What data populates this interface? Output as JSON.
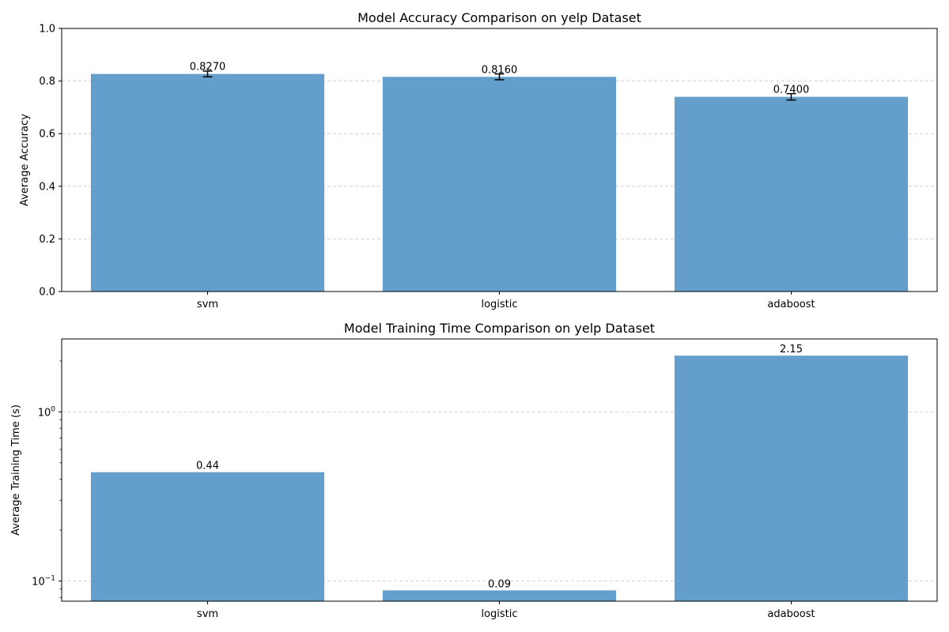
{
  "chart_data": [
    {
      "type": "bar",
      "title": "Model Accuracy Comparison on yelp Dataset",
      "xlabel": "",
      "ylabel": "Average Accuracy",
      "categories": [
        "svm",
        "logistic",
        "adaboost"
      ],
      "values": [
        0.827,
        0.816,
        0.74
      ],
      "errors": [
        0.011,
        0.011,
        0.012
      ],
      "value_labels": [
        "0.8270",
        "0.8160",
        "0.7400"
      ],
      "ylim": [
        0,
        1.0
      ],
      "yscale": "linear",
      "yticks": [
        0,
        0.2,
        0.4,
        0.6,
        0.8,
        1.0
      ],
      "ytick_labels": [
        "0.0",
        "0.2",
        "0.4",
        "0.6",
        "0.8",
        "1.0"
      ],
      "grid": "y-dashed",
      "bar_color": "#639fca",
      "error_color": "#000000"
    },
    {
      "type": "bar",
      "title": "Model Training Time Comparison on yelp Dataset",
      "xlabel": "",
      "ylabel": "Average Training Time (s)",
      "categories": [
        "svm",
        "logistic",
        "adaboost"
      ],
      "values": [
        0.44,
        0.088,
        2.15
      ],
      "value_labels": [
        "0.44",
        "0.09",
        "2.15"
      ],
      "ylim": [
        0.076,
        2.7
      ],
      "yscale": "log",
      "major_ticks": [
        {
          "value": 0.1,
          "base": "10",
          "exp": "−1"
        },
        {
          "value": 1,
          "base": "10",
          "exp": "0"
        }
      ],
      "grid": "y-dashed",
      "bar_color": "#639fca"
    }
  ]
}
